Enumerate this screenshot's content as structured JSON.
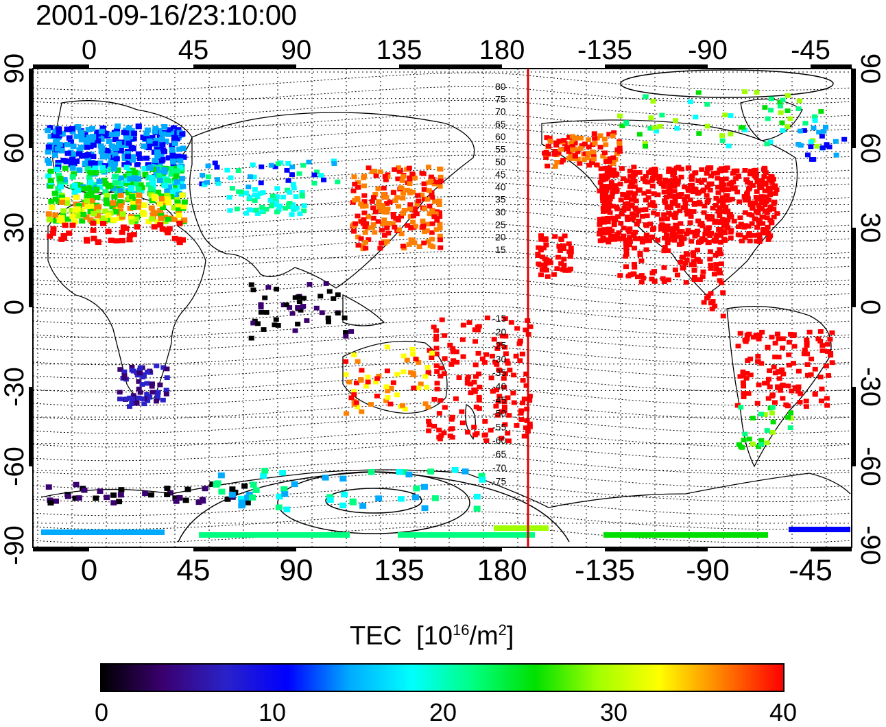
{
  "timestamp": "2001-09-16/23:10:00",
  "colorbar": {
    "title": "TEC",
    "unit_prefix": "[10",
    "unit_exp": "16",
    "unit_mid": "/m",
    "unit_exp2": "2",
    "unit_suffix": "]",
    "ticks": [
      "0",
      "10",
      "20",
      "30",
      "40"
    ],
    "stops": [
      "#000000",
      "#3a0070",
      "#2a22c8",
      "#0000ff",
      "#00aaff",
      "#00ffff",
      "#00ff80",
      "#00e000",
      "#a0ff00",
      "#ffff00",
      "#ff8000",
      "#ff0000"
    ]
  },
  "axes": {
    "lon_labels": [
      "0",
      "45",
      "90",
      "135",
      "180",
      "-135",
      "-90",
      "-45"
    ],
    "lat_labels": [
      "90",
      "60",
      "30",
      "0",
      "-30",
      "-60",
      "-90"
    ]
  },
  "contour_labels_north": [
    "80",
    "75",
    "70",
    "65",
    "60",
    "55",
    "50",
    "45",
    "40",
    "35",
    "30",
    "25",
    "20",
    "15"
  ],
  "contour_labels_south": [
    "-15",
    "-20",
    "-25",
    "-30",
    "-35",
    "-40",
    "-45",
    "-50",
    "-55",
    "-60",
    "-65",
    "-70",
    "-75"
  ],
  "colors": {
    "terminator": "#e00000",
    "background": "#ffffff"
  }
}
